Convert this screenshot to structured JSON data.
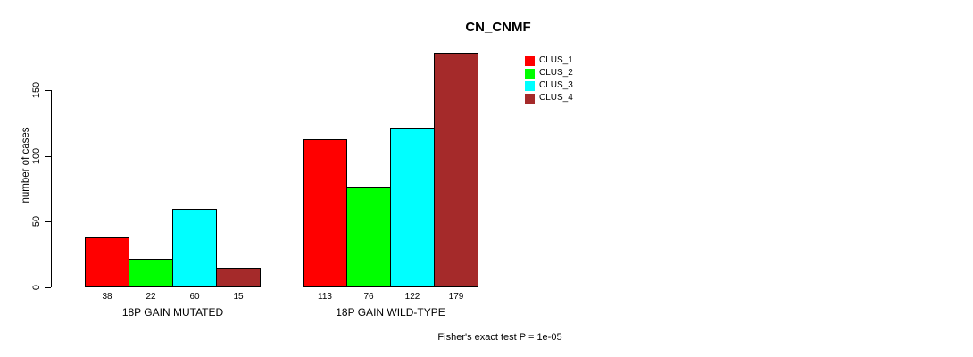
{
  "chart_data": {
    "type": "bar",
    "title": "CN_CNMF",
    "ylabel": "number of cases",
    "xlabel": "",
    "ylim": [
      0,
      180
    ],
    "yticks": [
      0,
      50,
      100,
      150
    ],
    "grid": false,
    "legend_position": "top-right",
    "categories": [
      "18P GAIN MUTATED",
      "18P GAIN WILD-TYPE"
    ],
    "series": [
      {
        "name": "CLUS_1",
        "color": "#ff0000",
        "values": [
          38,
          113
        ]
      },
      {
        "name": "CLUS_2",
        "color": "#00ff00",
        "values": [
          22,
          76
        ]
      },
      {
        "name": "CLUS_3",
        "color": "#00ffff",
        "values": [
          60,
          122
        ]
      },
      {
        "name": "CLUS_4",
        "color": "#a52a2a",
        "values": [
          15,
          179
        ]
      }
    ],
    "bar_value_labels": [
      [
        38,
        22,
        60,
        15
      ],
      [
        113,
        76,
        122,
        179
      ]
    ],
    "annotation": "Fisher's exact test P = 1e-05"
  }
}
